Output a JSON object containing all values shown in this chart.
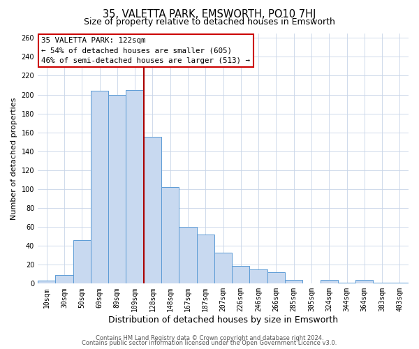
{
  "title": "35, VALETTA PARK, EMSWORTH, PO10 7HJ",
  "subtitle": "Size of property relative to detached houses in Emsworth",
  "xlabel": "Distribution of detached houses by size in Emsworth",
  "ylabel": "Number of detached properties",
  "bar_labels": [
    "10sqm",
    "30sqm",
    "50sqm",
    "69sqm",
    "89sqm",
    "109sqm",
    "128sqm",
    "148sqm",
    "167sqm",
    "187sqm",
    "207sqm",
    "226sqm",
    "246sqm",
    "266sqm",
    "285sqm",
    "305sqm",
    "324sqm",
    "344sqm",
    "364sqm",
    "383sqm",
    "403sqm"
  ],
  "bar_values": [
    3,
    9,
    46,
    204,
    200,
    205,
    155,
    102,
    60,
    52,
    33,
    19,
    15,
    12,
    4,
    0,
    4,
    1,
    4,
    1,
    1
  ],
  "bar_color": "#c8d9f0",
  "bar_edgecolor": "#5b9bd5",
  "vline_index": 6,
  "vline_color": "#aa0000",
  "annotation_title": "35 VALETTA PARK: 122sqm",
  "annotation_line1": "← 54% of detached houses are smaller (605)",
  "annotation_line2": "46% of semi-detached houses are larger (513) →",
  "annotation_box_color": "#ffffff",
  "annotation_box_edgecolor": "#cc0000",
  "ylim_max": 265,
  "ytick_step": 20,
  "footer1": "Contains HM Land Registry data © Crown copyright and database right 2024.",
  "footer2": "Contains public sector information licensed under the Open Government Licence v3.0.",
  "bg_color": "#ffffff",
  "grid_color": "#c8d5e8",
  "title_fontsize": 10.5,
  "subtitle_fontsize": 9,
  "ylabel_fontsize": 8,
  "xlabel_fontsize": 9,
  "tick_fontsize": 7,
  "annotation_fontsize": 7.8,
  "footer_fontsize": 6
}
